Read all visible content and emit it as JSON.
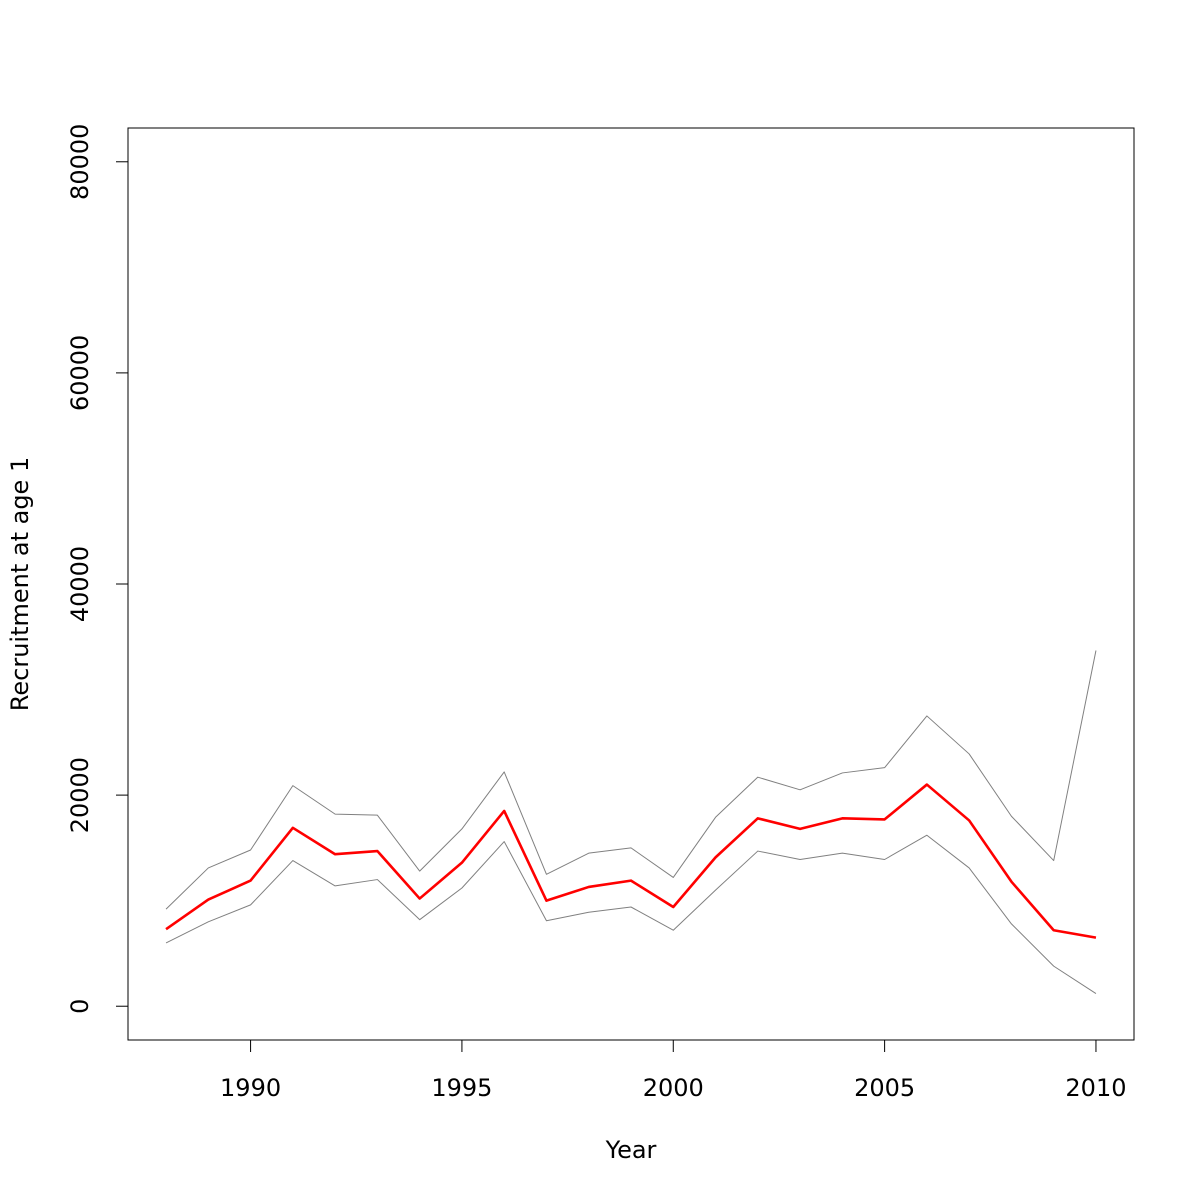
{
  "chart_data": {
    "type": "line",
    "xlabel": "Year",
    "ylabel": "Recruitment at age 1",
    "xlim": [
      1987.1,
      2010.9
    ],
    "ylim": [
      -3200,
      83200
    ],
    "x_ticks": [
      1990,
      1995,
      2000,
      2005,
      2010
    ],
    "y_ticks": [
      0,
      20000,
      40000,
      60000,
      80000
    ],
    "x": [
      1988,
      1989,
      1990,
      1991,
      1992,
      1993,
      1994,
      1995,
      1996,
      1997,
      1998,
      1999,
      2000,
      2001,
      2002,
      2003,
      2004,
      2005,
      2006,
      2007,
      2008,
      2009,
      2010
    ],
    "series": [
      {
        "role": "upper",
        "color": "#808080",
        "values": [
          9200,
          13100,
          14800,
          20900,
          18200,
          18100,
          12800,
          16800,
          22200,
          12500,
          14500,
          15000,
          12200,
          17900,
          21700,
          20500,
          22100,
          22600,
          27500,
          23900,
          18000,
          13800,
          33700
        ]
      },
      {
        "role": "estimate",
        "color": "#ff0000",
        "values": [
          7300,
          10100,
          11900,
          16900,
          14400,
          14700,
          10200,
          13600,
          18500,
          10000,
          11300,
          11900,
          9400,
          14100,
          17800,
          16800,
          17800,
          17700,
          21000,
          17600,
          11800,
          7200,
          6500
        ]
      },
      {
        "role": "lower",
        "color": "#808080",
        "values": [
          6000,
          8000,
          9600,
          13800,
          11400,
          12000,
          8200,
          11200,
          15600,
          8100,
          8900,
          9400,
          7200,
          11000,
          14700,
          13900,
          14500,
          13900,
          16200,
          13100,
          7800,
          3800,
          1200
        ]
      }
    ]
  }
}
